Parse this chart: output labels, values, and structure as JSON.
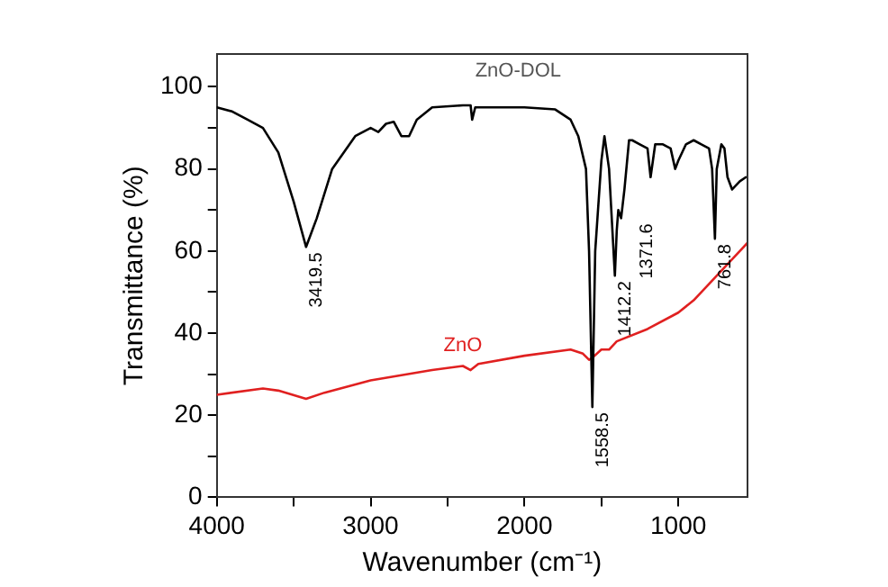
{
  "chart_data": {
    "type": "line",
    "xlabel": "Wavenumber (cm⁻¹)",
    "ylabel": "Transmittance (%)",
    "xlim": [
      4000,
      550
    ],
    "ylim": [
      0,
      108
    ],
    "xticks": [
      4000,
      {
        "value": 3500,
        "label": null
      },
      3000,
      {
        "value": 2500,
        "label": null
      },
      2000,
      {
        "value": 1500,
        "label": null
      },
      1000
    ],
    "yticks": [
      0,
      {
        "value": 10,
        "label": null
      },
      20,
      {
        "value": 30,
        "label": null
      },
      40,
      {
        "value": 50,
        "label": null
      },
      60,
      {
        "value": 70,
        "label": null
      },
      80,
      {
        "value": 90,
        "label": null
      },
      100
    ],
    "grid": false,
    "legend": false,
    "marker": "none",
    "line_style": "solid",
    "series": [
      {
        "name": "ZnO-DOL",
        "color": "#000000",
        "x": [
          4000,
          3900,
          3800,
          3700,
          3600,
          3500,
          3419.5,
          3350,
          3250,
          3100,
          3000,
          2950,
          2900,
          2850,
          2800,
          2750,
          2700,
          2600,
          2400,
          2350,
          2340,
          2320,
          2000,
          1800,
          1700,
          1650,
          1600,
          1580,
          1558.5,
          1540,
          1500,
          1480,
          1450,
          1412.2,
          1400,
          1390,
          1371.6,
          1350,
          1320,
          1300,
          1250,
          1200,
          1180,
          1150,
          1100,
          1050,
          1020,
          1000,
          950,
          900,
          850,
          800,
          780,
          761.8,
          750,
          720,
          700,
          680,
          650,
          600,
          560
        ],
        "values": [
          95,
          94,
          92,
          90,
          84,
          72,
          61,
          68,
          80,
          88,
          90,
          89,
          91,
          91.5,
          88,
          88,
          92,
          95,
          95.5,
          95.5,
          92,
          95,
          95,
          94.5,
          92,
          88,
          80,
          60,
          22,
          60,
          82,
          88,
          80,
          54,
          65,
          70,
          68,
          75,
          87,
          87,
          86,
          85,
          78,
          86,
          86,
          85,
          80,
          82,
          86,
          87,
          86,
          85,
          80,
          63,
          80,
          86,
          85,
          78,
          75,
          77,
          78
        ]
      },
      {
        "name": "ZnO",
        "color": "#e02020",
        "x": [
          4000,
          3700,
          3600,
          3419.5,
          3300,
          3000,
          2600,
          2400,
          2350,
          2300,
          2000,
          1700,
          1620,
          1580,
          1558.5,
          1500,
          1450,
          1400,
          1200,
          1000,
          900,
          800,
          700,
          600,
          550
        ],
        "values": [
          25,
          26.5,
          26,
          24,
          25.5,
          28.5,
          31,
          32,
          31,
          32.5,
          34.5,
          36,
          35,
          33.5,
          34,
          36,
          36,
          38,
          41,
          45,
          48,
          52,
          56,
          60,
          62
        ]
      }
    ],
    "annotations": [
      {
        "text": "3419.5",
        "x": 3419.5,
        "y": 61
      },
      {
        "text": "1558.5",
        "x": 1558.5,
        "y": 22
      },
      {
        "text": "1412.2",
        "x": 1412.2,
        "y": 54
      },
      {
        "text": "1371.6",
        "x": 1371.6,
        "y": 68
      },
      {
        "text": "761.8",
        "x": 761.8,
        "y": 63
      }
    ]
  }
}
